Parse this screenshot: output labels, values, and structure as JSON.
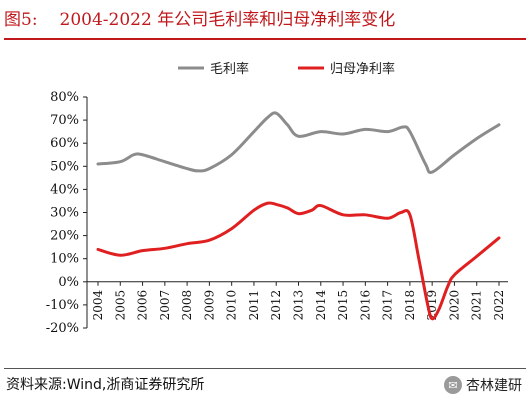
{
  "header": {
    "figure_number": "图5:",
    "title": "2004-2022 年公司毛利率和归母净利率变化"
  },
  "footer": {
    "source": "资料来源:Wind,浙商证券研究所",
    "watermark": "杏林建研",
    "watermark_icon": "wechat-icon"
  },
  "colors": {
    "title_red": "#c0181b",
    "gross_margin_line": "#8c8c8c",
    "net_margin_line": "#e02020"
  },
  "chart_data": {
    "type": "line",
    "title": "",
    "xlabel": "",
    "ylabel": "",
    "ylim": [
      -20,
      80
    ],
    "yticks": [
      "80%",
      "70%",
      "60%",
      "50%",
      "40%",
      "30%",
      "20%",
      "10%",
      "0%",
      "-10%",
      "-20%"
    ],
    "ytick_values": [
      80,
      70,
      60,
      50,
      40,
      30,
      20,
      10,
      0,
      -10,
      -20
    ],
    "categories": [
      "2004",
      "2005",
      "2006",
      "2007",
      "2008",
      "2009",
      "2010",
      "2011",
      "2012",
      "2013",
      "2014",
      "2015",
      "2016",
      "2017",
      "2018",
      "2019",
      "2020",
      "2021",
      "2022"
    ],
    "legend_position": "top-center",
    "grid": false,
    "series": [
      {
        "name": "毛利率",
        "color": "#8c8c8c",
        "x": [
          2004,
          2005,
          2005.6,
          2006,
          2007,
          2008,
          2008.5,
          2009,
          2010,
          2011,
          2011.6,
          2012,
          2012.5,
          2013,
          2014,
          2015,
          2016,
          2017,
          2017.7,
          2018,
          2018.7,
          2019,
          2020,
          2021,
          2022
        ],
        "values": [
          51,
          52,
          55,
          55,
          52,
          49,
          48,
          49,
          55,
          65,
          71,
          73,
          68,
          63,
          65,
          64,
          66,
          65,
          67,
          65,
          51,
          47.5,
          55,
          62,
          68
        ]
      },
      {
        "name": "归母净利率",
        "color": "#e02020",
        "x": [
          2004,
          2005,
          2006,
          2007,
          2008,
          2009,
          2010,
          2011,
          2011.6,
          2012,
          2012.5,
          2013,
          2013.6,
          2014,
          2015,
          2016,
          2017,
          2017.6,
          2018,
          2018.4,
          2018.8,
          2019,
          2019.3,
          2019.7,
          2020,
          2021,
          2022
        ],
        "values": [
          14,
          11.5,
          13.5,
          14.5,
          16.5,
          18,
          23,
          31,
          34,
          33.5,
          32,
          29.5,
          31,
          33,
          29,
          29,
          27.5,
          30,
          29,
          10,
          -10,
          -16,
          -12,
          -2,
          3,
          11,
          19
        ]
      }
    ]
  }
}
